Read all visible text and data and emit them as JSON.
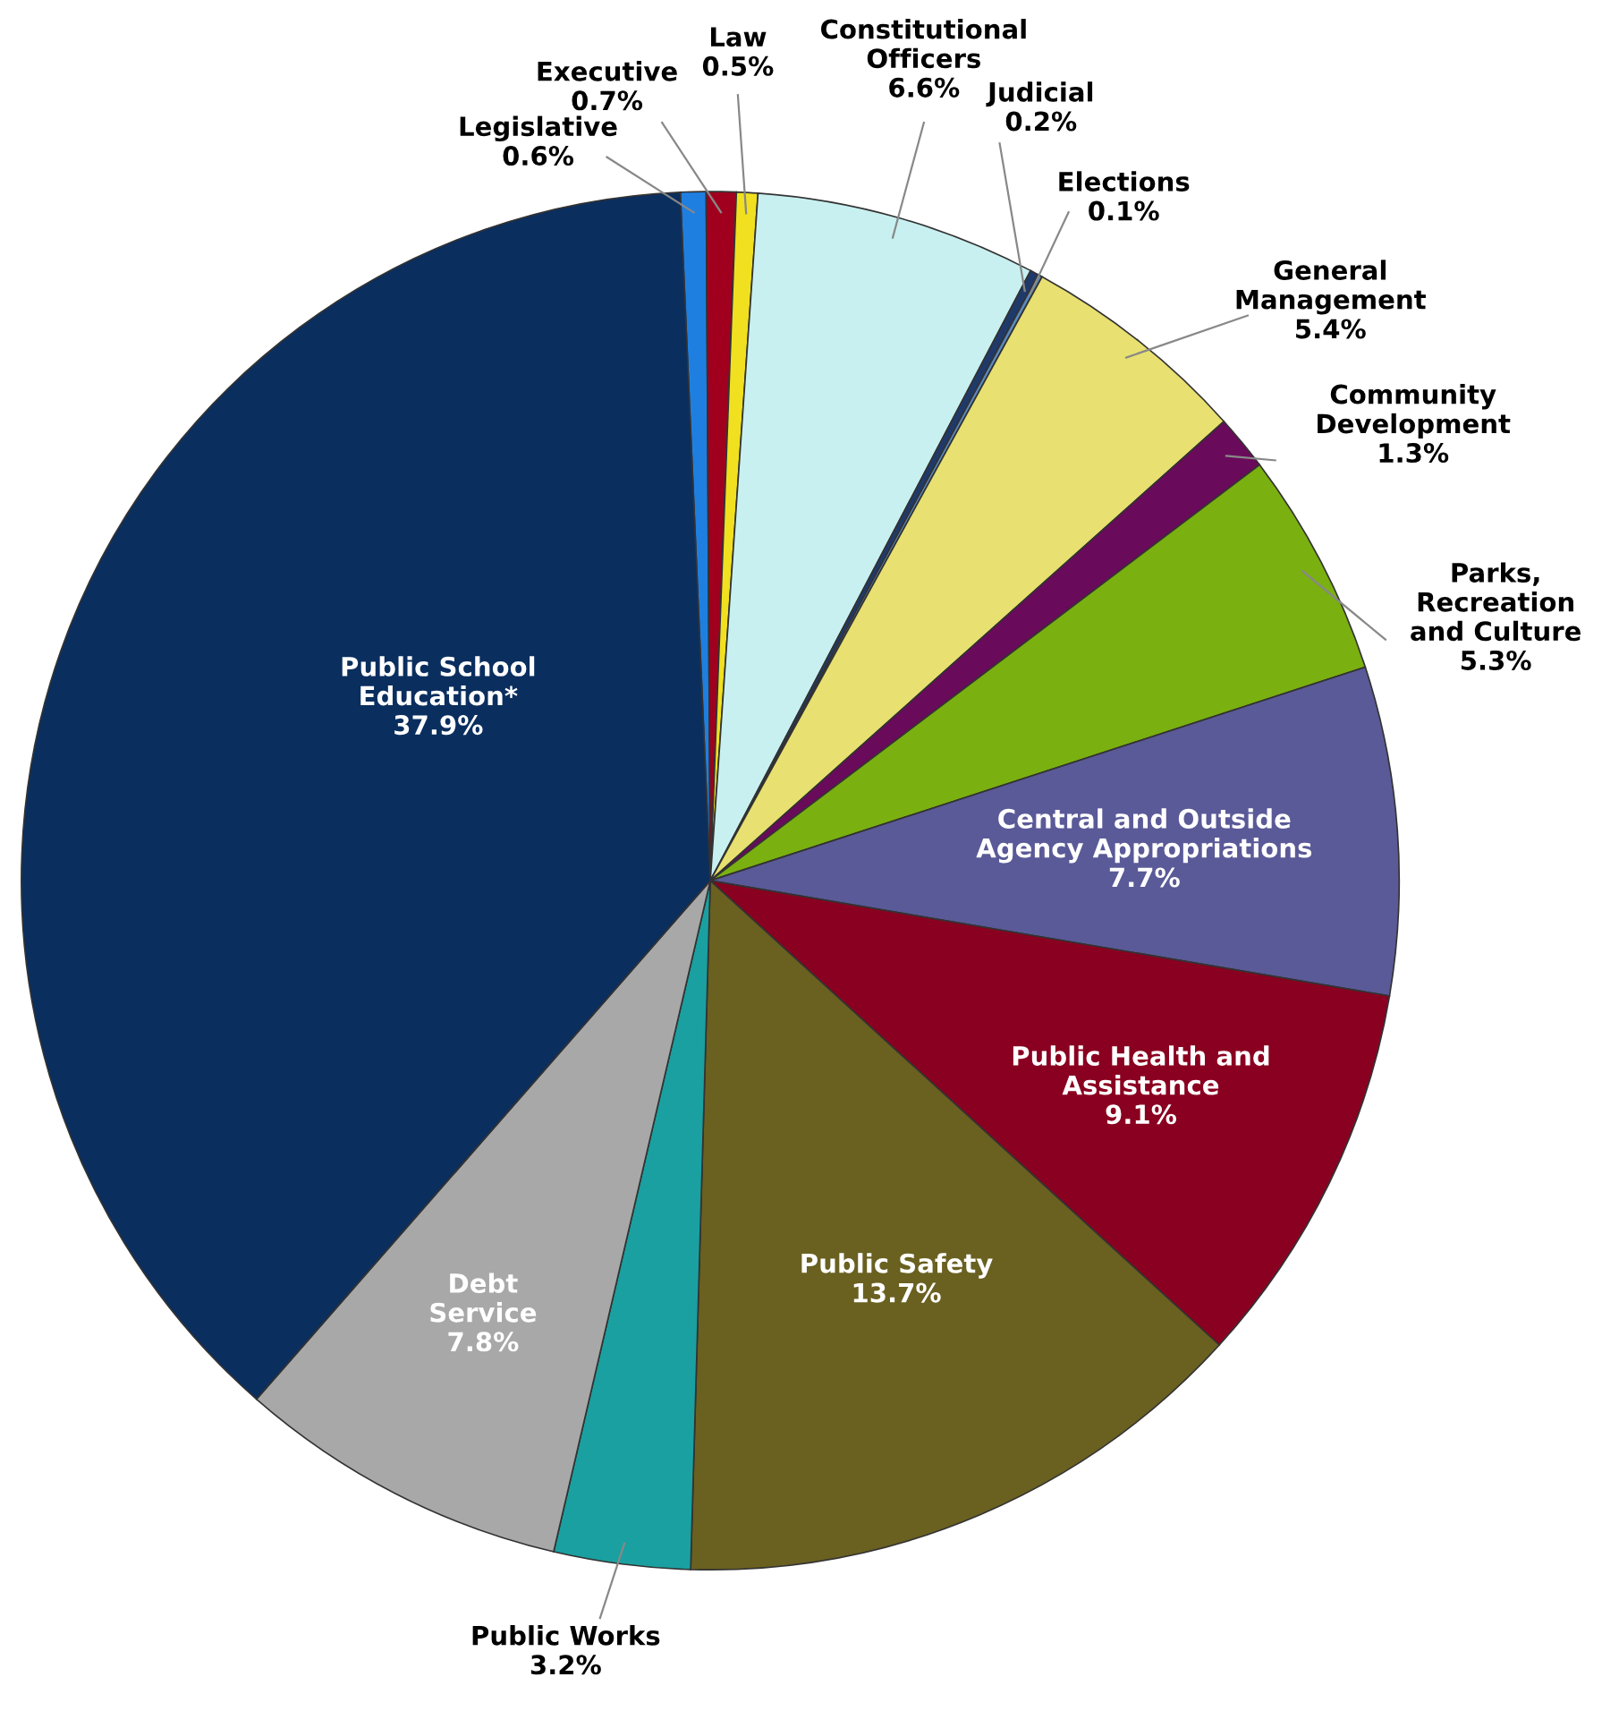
{
  "chart_data": {
    "type": "pie",
    "categories": [
      "Legislative",
      "Executive",
      "Law",
      "Constitutional\nOfficers",
      "Judicial",
      "Elections",
      "General\nManagement",
      "Community\nDevelopment",
      "Parks,\nRecreation\nand Culture",
      "Central and Outside\nAgency Appropriations",
      "Public Health and\nAssistance",
      "Public Safety",
      "Public Works",
      "Debt\nService",
      "Public School\nEducation*"
    ],
    "values": [
      0.6,
      0.7,
      0.5,
      6.6,
      0.2,
      0.1,
      5.4,
      1.3,
      5.3,
      7.7,
      9.1,
      13.7,
      3.2,
      7.8,
      37.9
    ],
    "value_labels": [
      "0.6%",
      "0.7%",
      "0.5%",
      "6.6%",
      "0.2%",
      "0.1%",
      "5.4%",
      "1.3%",
      "5.3%",
      "7.7%",
      "9.1%",
      "13.7%",
      "3.2%",
      "7.8%",
      "37.9%"
    ],
    "colors": [
      "#1f7fe0",
      "#a0001e",
      "#f0e020",
      "#c8f0f0",
      "#1f3a6a",
      "#5a8ac0",
      "#e8e070",
      "#6a0a5a",
      "#7ab010",
      "#5a5a98",
      "#8a0020",
      "#6a6020",
      "#1aa0a0",
      "#a8a8a8",
      "#0a2e5e"
    ],
    "legend": false
  }
}
